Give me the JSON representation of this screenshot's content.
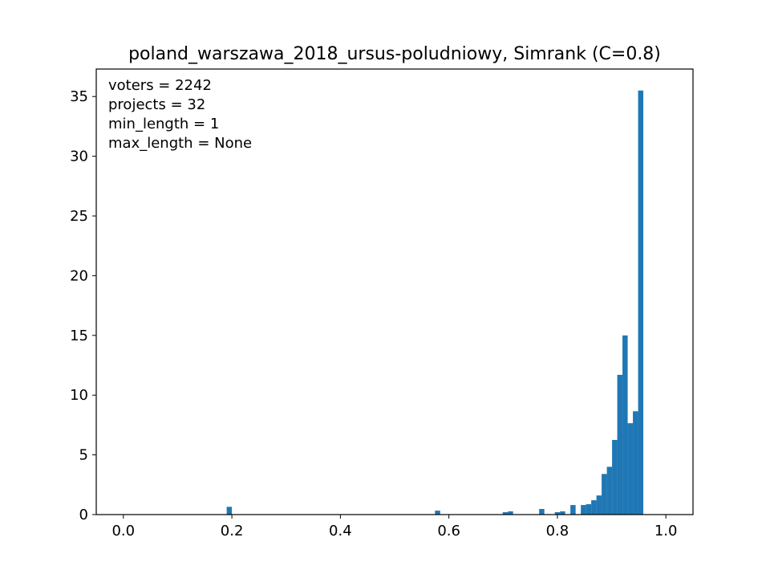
{
  "chart_data": {
    "type": "bar",
    "title": "poland_warszawa_2018_ursus-poludniowy, Simrank (C=0.8)",
    "xlabel": "",
    "ylabel": "",
    "xlim": [
      -0.05,
      1.05
    ],
    "ylim": [
      0,
      37.3
    ],
    "xticks": [
      0.0,
      0.2,
      0.4,
      0.6,
      0.8,
      1.0
    ],
    "xtick_labels": [
      "0.0",
      "0.2",
      "0.4",
      "0.6",
      "0.8",
      "1.0"
    ],
    "yticks": [
      0,
      5,
      10,
      15,
      20,
      25,
      30,
      35
    ],
    "ytick_labels": [
      "0",
      "5",
      "10",
      "15",
      "20",
      "25",
      "30",
      "35"
    ],
    "grid": false,
    "bar_color": "#1f77b4",
    "bin_width": 0.0096,
    "bins": [
      {
        "x": 0.1904,
        "y": 0.65
      },
      {
        "x": 0.5744,
        "y": 0.33
      },
      {
        "x": 0.6992,
        "y": 0.2
      },
      {
        "x": 0.7088,
        "y": 0.27
      },
      {
        "x": 0.7664,
        "y": 0.47
      },
      {
        "x": 0.7952,
        "y": 0.2
      },
      {
        "x": 0.8048,
        "y": 0.27
      },
      {
        "x": 0.824,
        "y": 0.8
      },
      {
        "x": 0.8432,
        "y": 0.8
      },
      {
        "x": 0.8528,
        "y": 0.87
      },
      {
        "x": 0.8624,
        "y": 1.2
      },
      {
        "x": 0.872,
        "y": 1.6
      },
      {
        "x": 0.8816,
        "y": 3.4
      },
      {
        "x": 0.8912,
        "y": 4.0
      },
      {
        "x": 0.9008,
        "y": 6.25
      },
      {
        "x": 0.9104,
        "y": 11.7
      },
      {
        "x": 0.92,
        "y": 15.0
      },
      {
        "x": 0.9296,
        "y": 7.65
      },
      {
        "x": 0.9392,
        "y": 8.65
      },
      {
        "x": 0.9488,
        "y": 35.5
      }
    ],
    "annotation_lines": [
      "voters = 2242",
      "projects = 32",
      "min_length = 1",
      "max_length = None"
    ]
  }
}
